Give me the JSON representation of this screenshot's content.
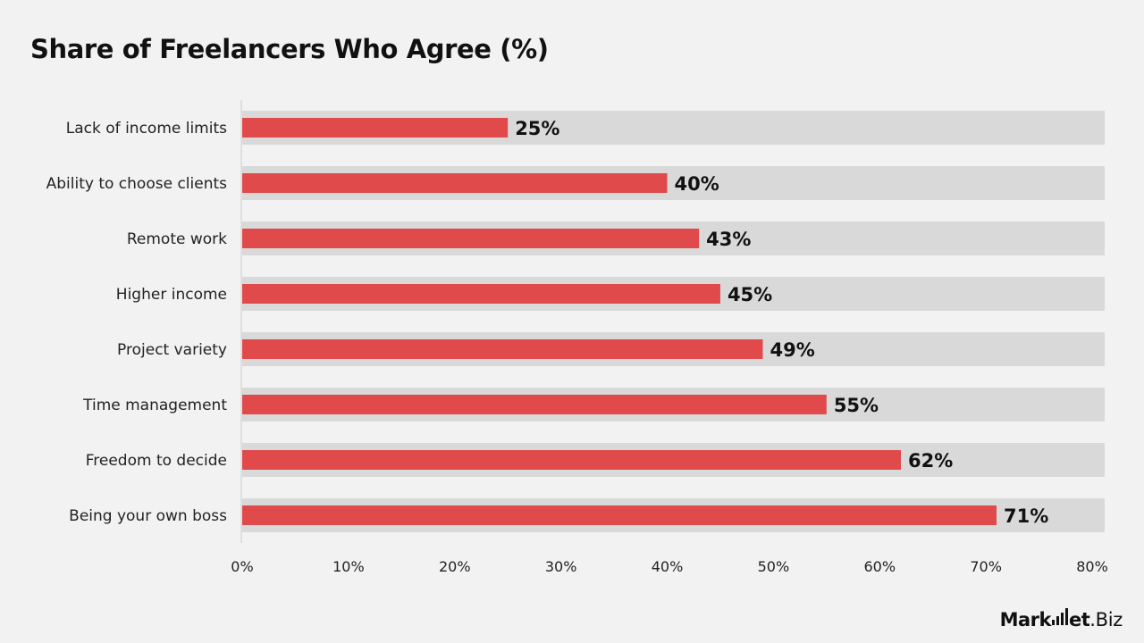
{
  "page": {
    "title": "Share of Freelancers Who Agree (%)"
  },
  "logo": {
    "text_part1": "Mark",
    "text_part2": "et",
    "text_part3": ".Biz"
  },
  "colors": {
    "bar": "#e04a4a",
    "track": "#d9d9d9",
    "background": "#f2f2f2",
    "axis_line": "#cccccc"
  },
  "chart_data": {
    "type": "bar",
    "orientation": "horizontal",
    "title": "Share of Freelancers Who Agree (%)",
    "xlabel": "",
    "ylabel": "",
    "categories": [
      "Lack of income limits",
      "Ability to choose clients",
      "Remote work",
      "Higher income",
      "Project variety",
      "Time management",
      "Freedom to decide",
      "Being your own boss"
    ],
    "values": [
      25,
      40,
      43,
      45,
      49,
      55,
      62,
      71
    ],
    "value_labels": [
      "25%",
      "40%",
      "43%",
      "45%",
      "49%",
      "55%",
      "62%",
      "71%"
    ],
    "xlim": [
      0,
      80
    ],
    "x_ticks": [
      0,
      10,
      20,
      30,
      40,
      50,
      60,
      70,
      80
    ],
    "x_tick_labels": [
      "0%",
      "10%",
      "20%",
      "30%",
      "40%",
      "50%",
      "60%",
      "70%",
      "80%"
    ],
    "grid": false,
    "legend": "none"
  }
}
